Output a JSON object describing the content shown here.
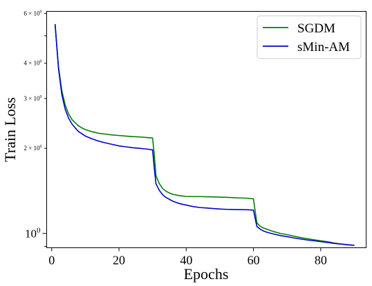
{
  "chart_data": {
    "type": "line",
    "title": "",
    "xlabel": "Epochs",
    "ylabel": "Train Loss",
    "yscale": "log",
    "xlim": [
      -1.5,
      93.5
    ],
    "ylim": [
      0.89,
      6.1
    ],
    "grid": false,
    "legend_position": "top-right",
    "x_ticks": [
      {
        "value": 0,
        "label": "0"
      },
      {
        "value": 20,
        "label": "20"
      },
      {
        "value": 40,
        "label": "40"
      },
      {
        "value": 60,
        "label": "60"
      },
      {
        "value": 80,
        "label": "80"
      }
    ],
    "y_major_ticks": [
      {
        "value": 1,
        "base": "10",
        "exp": "0"
      }
    ],
    "y_minor_ticks": [
      {
        "value": 2,
        "mant": "2 × 10",
        "exp": "0"
      },
      {
        "value": 3,
        "mant": "3 × 10",
        "exp": "0"
      },
      {
        "value": 4,
        "mant": "4 × 10",
        "exp": "0"
      },
      {
        "value": 6,
        "mant": "6 × 10",
        "exp": "0"
      }
    ],
    "y_unlabeled_ticks": [
      0.9,
      5
    ],
    "series": [
      {
        "name": "SGDM",
        "color": "#008000",
        "x": [
          1,
          2,
          3,
          4,
          5,
          6,
          7,
          8,
          9,
          10,
          12,
          14,
          16,
          18,
          20,
          22,
          24,
          26,
          28,
          30,
          30.5,
          31,
          32,
          33,
          34,
          35,
          36,
          38,
          40,
          42,
          44,
          46,
          48,
          50,
          52,
          54,
          56,
          58,
          60,
          60.5,
          61,
          62,
          63,
          64,
          66,
          68,
          70,
          72,
          74,
          76,
          78,
          80,
          82,
          84,
          86,
          88,
          90
        ],
        "y": [
          5.5,
          3.9,
          3.2,
          2.85,
          2.65,
          2.53,
          2.46,
          2.4,
          2.36,
          2.33,
          2.29,
          2.26,
          2.245,
          2.23,
          2.22,
          2.21,
          2.2,
          2.195,
          2.185,
          2.175,
          1.9,
          1.6,
          1.5,
          1.44,
          1.41,
          1.39,
          1.375,
          1.36,
          1.352,
          1.35,
          1.35,
          1.348,
          1.347,
          1.344,
          1.342,
          1.338,
          1.335,
          1.333,
          1.325,
          1.2,
          1.09,
          1.06,
          1.045,
          1.035,
          1.015,
          1.0,
          0.99,
          0.978,
          0.967,
          0.958,
          0.95,
          0.942,
          0.935,
          0.925,
          0.918,
          0.912,
          0.908
        ]
      },
      {
        "name": "sMin-AM",
        "color": "#0000d0",
        "x": [
          1,
          2,
          3,
          4,
          5,
          6,
          7,
          8,
          9,
          10,
          12,
          14,
          16,
          18,
          20,
          22,
          24,
          26,
          28,
          30,
          30.5,
          31,
          32,
          33,
          34,
          35,
          36,
          38,
          40,
          42,
          44,
          46,
          48,
          50,
          52,
          54,
          56,
          58,
          60,
          60.5,
          61,
          62,
          63,
          64,
          66,
          68,
          70,
          72,
          74,
          76,
          78,
          80,
          82,
          84,
          86,
          88,
          90
        ],
        "y": [
          5.5,
          3.85,
          3.1,
          2.75,
          2.56,
          2.44,
          2.36,
          2.29,
          2.25,
          2.21,
          2.16,
          2.12,
          2.09,
          2.065,
          2.04,
          2.025,
          2.01,
          2.0,
          1.99,
          1.975,
          1.7,
          1.5,
          1.42,
          1.37,
          1.34,
          1.32,
          1.3,
          1.275,
          1.26,
          1.245,
          1.235,
          1.23,
          1.225,
          1.22,
          1.217,
          1.215,
          1.214,
          1.213,
          1.21,
          1.13,
          1.06,
          1.035,
          1.02,
          1.01,
          0.995,
          0.983,
          0.974,
          0.964,
          0.956,
          0.948,
          0.942,
          0.936,
          0.929,
          0.922,
          0.917,
          0.912,
          0.908
        ]
      }
    ]
  }
}
